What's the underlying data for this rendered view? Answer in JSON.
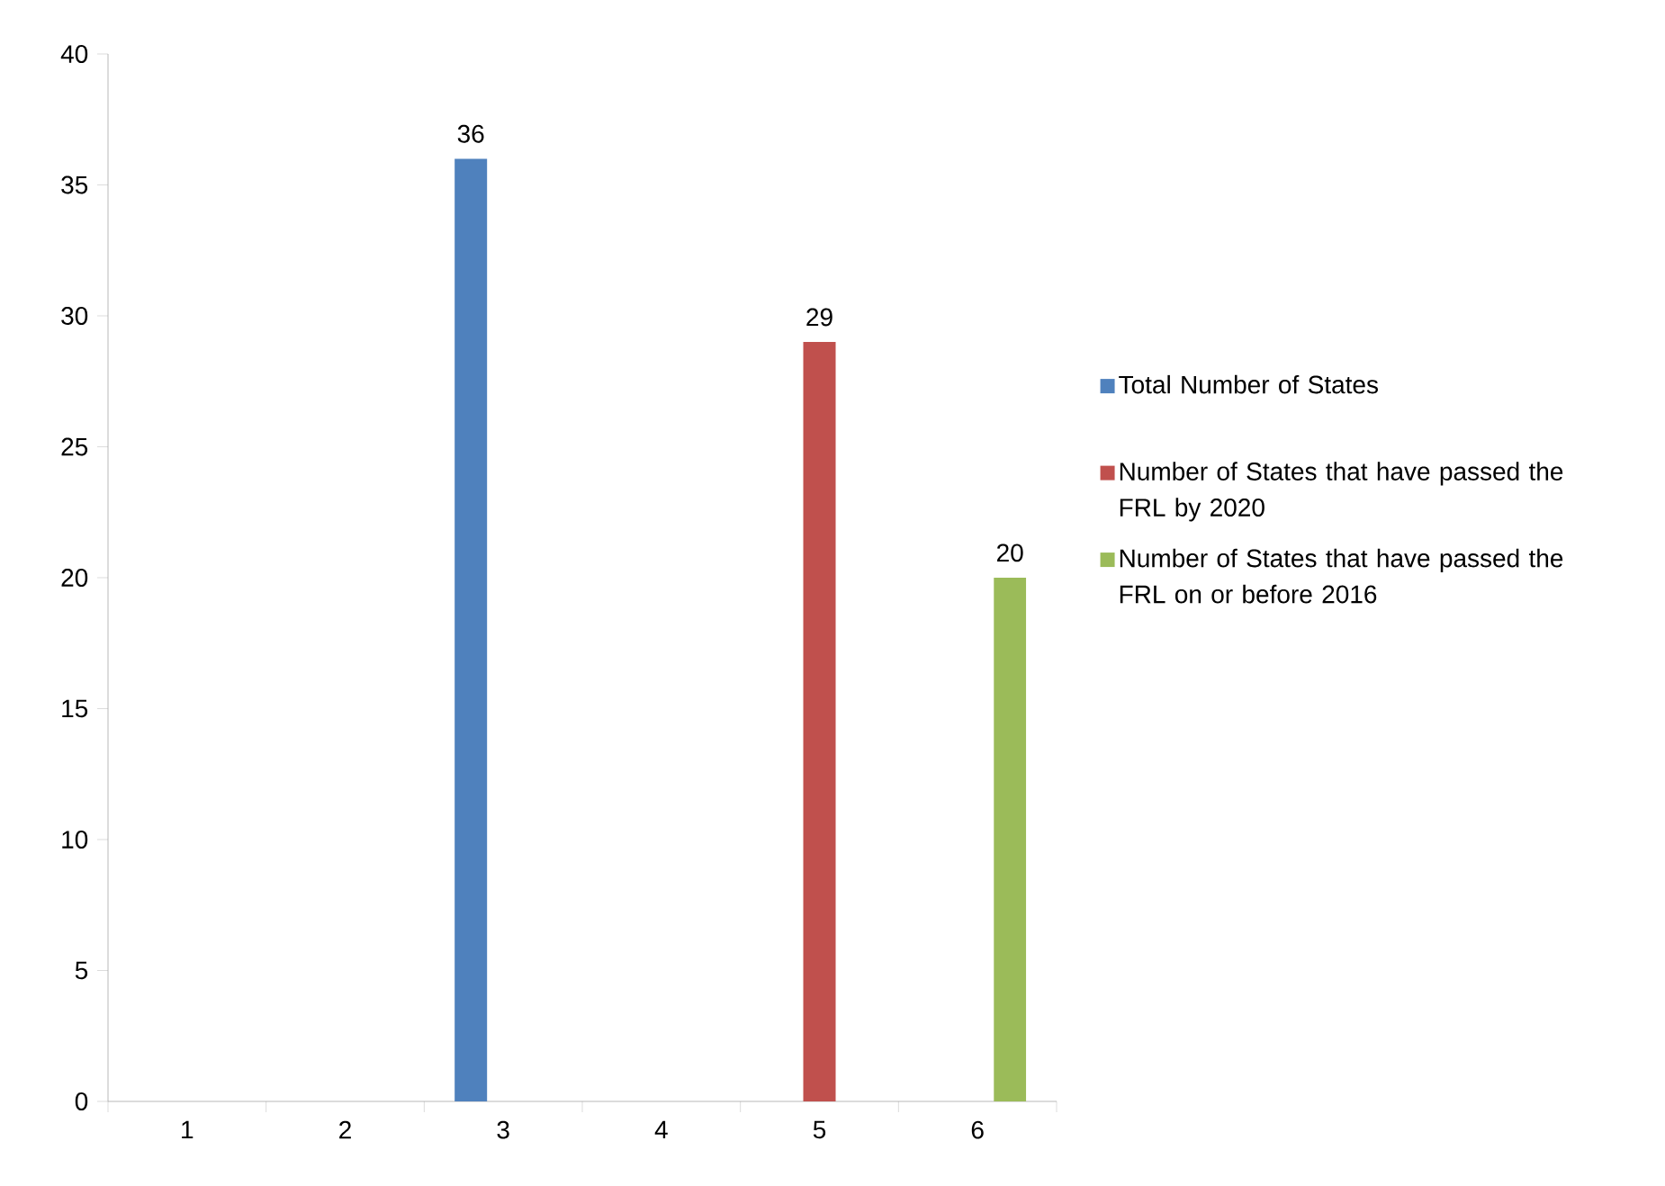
{
  "chart_data": {
    "type": "bar",
    "categories": [
      "1",
      "2",
      "3",
      "4",
      "5",
      "6"
    ],
    "series": [
      {
        "name": "Total Number of States",
        "color": "#4f81bd",
        "values": [
          null,
          null,
          36,
          null,
          null,
          null
        ]
      },
      {
        "name": "Number of States that have passed the FRL by 2020",
        "color": "#c0504d",
        "values": [
          null,
          null,
          null,
          null,
          29,
          null
        ]
      },
      {
        "name": "Number of States that have passed the FRL on or before 2016",
        "color": "#9bbb59",
        "values": [
          null,
          null,
          null,
          null,
          null,
          20
        ]
      }
    ],
    "ylim": [
      0,
      40
    ],
    "yticks": [
      0,
      5,
      10,
      15,
      20,
      25,
      30,
      35,
      40
    ],
    "grid": false,
    "legend": "right",
    "data_labels": true
  }
}
